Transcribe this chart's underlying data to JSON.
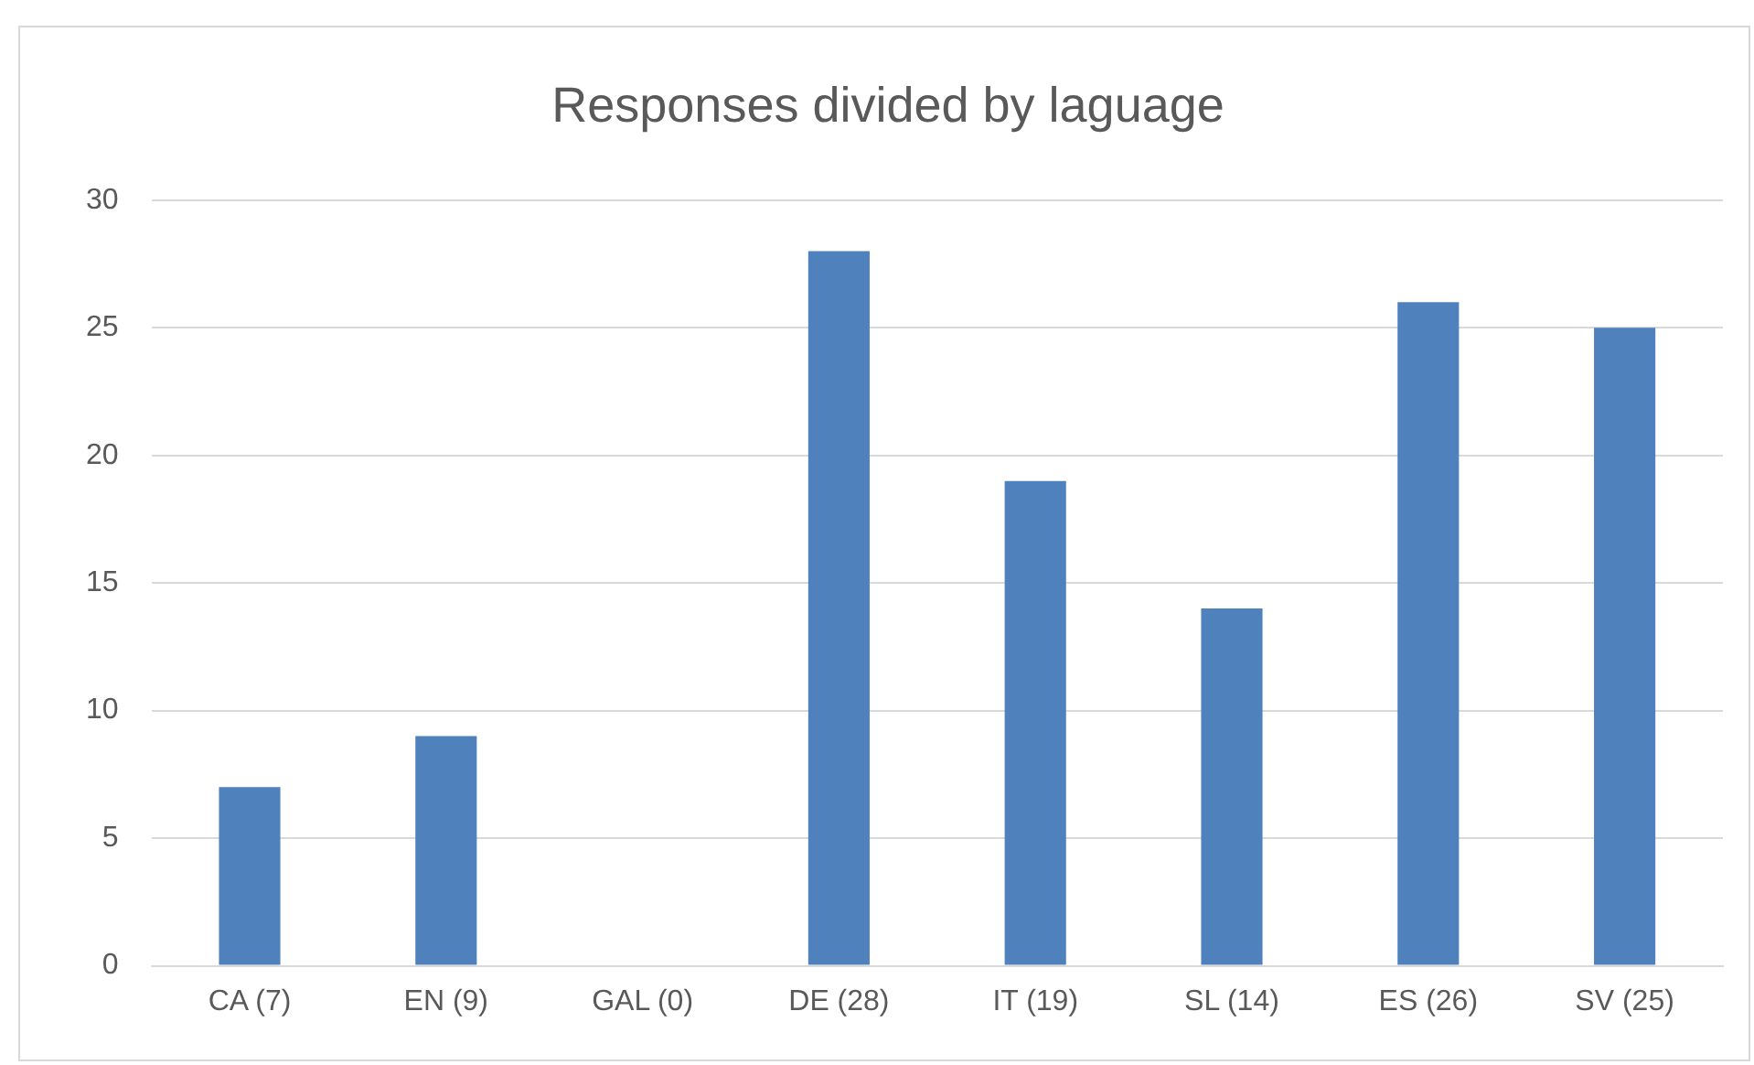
{
  "chart_data": {
    "type": "bar",
    "title": "Responses divided by laguage",
    "categories": [
      "CA (7)",
      "EN (9)",
      "GAL (0)",
      "DE (28)",
      "IT (19)",
      "SL (14)",
      "ES (26)",
      "SV (25)"
    ],
    "values": [
      7,
      9,
      0,
      28,
      19,
      14,
      26,
      25
    ],
    "color": "#4f81bd",
    "ylim": [
      0,
      30
    ],
    "yticks": [
      0,
      5,
      10,
      15,
      20,
      25,
      30
    ],
    "grid": "y",
    "legend": false
  }
}
